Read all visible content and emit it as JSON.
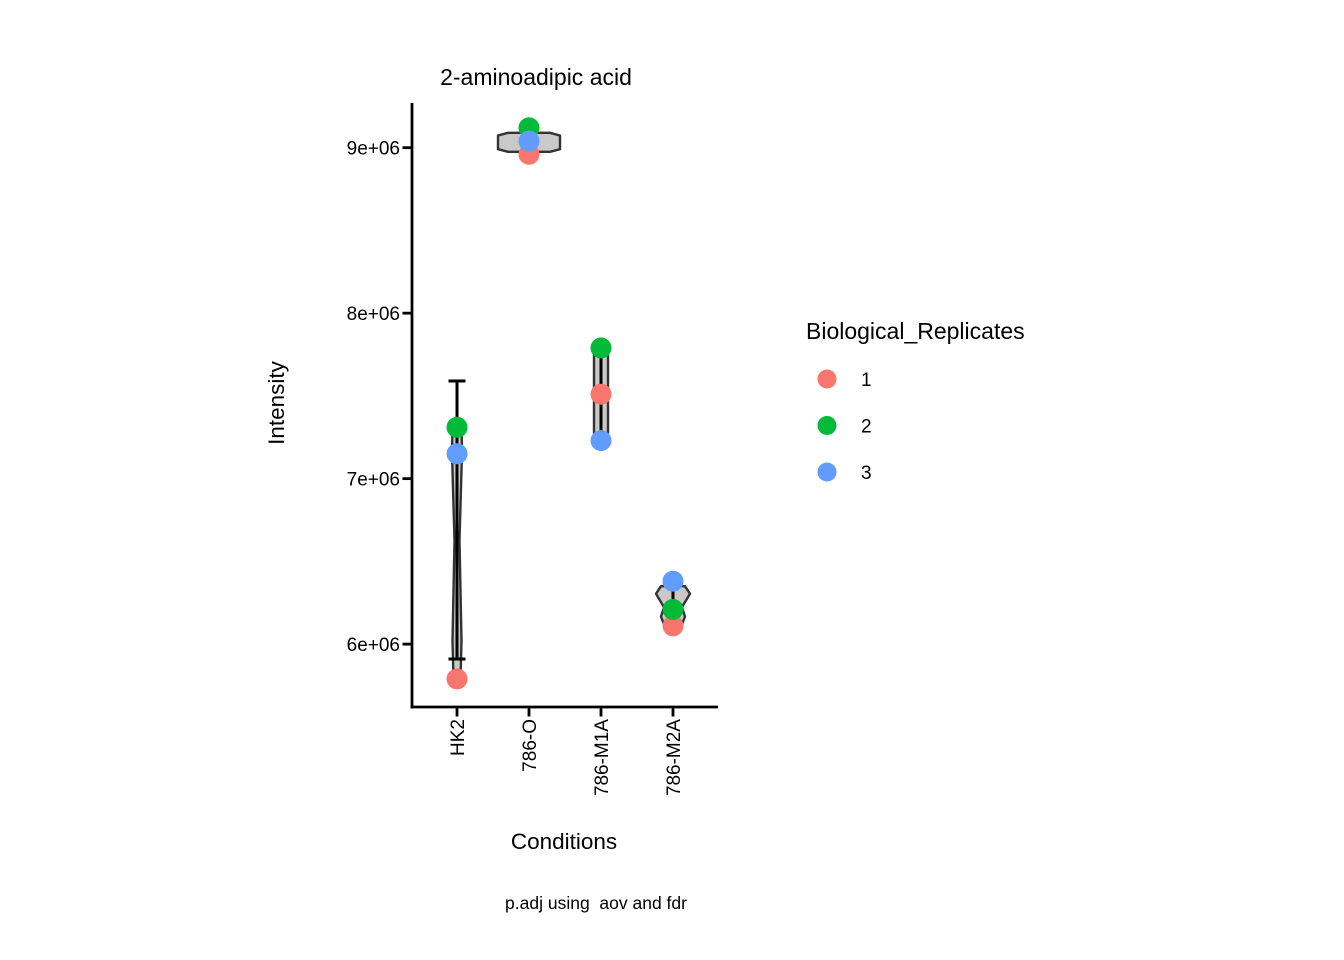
{
  "chart_data": {
    "type": "scatter",
    "subtype": "violin-dotplot",
    "title": "2-aminoadipic acid",
    "xlabel": "Conditions",
    "ylabel": "Intensity",
    "caption": "p.adj using  aov and fdr",
    "categories": [
      "HK2",
      "786-O",
      "786-M1A",
      "786-M2A"
    ],
    "y_ticks": {
      "labels": [
        "6e+06",
        "7e+06",
        "8e+06",
        "9e+06"
      ],
      "values": [
        6000000,
        7000000,
        8000000,
        9000000
      ]
    },
    "ylim": [
      5620000,
      9270000
    ],
    "grid": false,
    "legend": {
      "title": "Biological_Replicates",
      "position": "right",
      "entries": [
        {
          "label": "1",
          "color": "#F8766D"
        },
        {
          "label": "2",
          "color": "#00BA38"
        },
        {
          "label": "3",
          "color": "#619CFF"
        }
      ]
    },
    "series": [
      {
        "name": "1",
        "color": "#F8766D",
        "values": [
          5790000,
          8960000,
          7510000,
          6110000
        ]
      },
      {
        "name": "2",
        "color": "#00BA38",
        "values": [
          7310000,
          9120000,
          7790000,
          6210000
        ]
      },
      {
        "name": "3",
        "color": "#619CFF",
        "values": [
          7150000,
          9040000,
          7230000,
          6380000
        ]
      }
    ],
    "error_bars": [
      {
        "category": "HK2",
        "low": 5910000,
        "high": 7590000
      },
      {
        "category": "786-O",
        "low": 8960000,
        "high": 9120000
      },
      {
        "category": "786-M1A",
        "low": 7230000,
        "high": 7790000
      },
      {
        "category": "786-M2A",
        "low": 6100000,
        "high": 6370000
      }
    ],
    "violins": [
      {
        "category": "HK2",
        "min": 5790000,
        "max": 7310000,
        "profile": [
          [
            0,
            4.5
          ],
          [
            0.1,
            5
          ],
          [
            0.45,
            2.5
          ],
          [
            0.85,
            4.5
          ],
          [
            1,
            3.5
          ]
        ]
      },
      {
        "category": "786-O",
        "min": 8975000,
        "max": 9090000,
        "profile": [
          [
            0,
            21
          ],
          [
            0.14,
            31
          ],
          [
            0.86,
            31
          ],
          [
            1,
            21
          ]
        ]
      },
      {
        "category": "786-M1A",
        "min": 7230000,
        "max": 7790000,
        "profile": [
          [
            0,
            5
          ],
          [
            0.08,
            7
          ],
          [
            0.92,
            7
          ],
          [
            1,
            5
          ]
        ]
      },
      {
        "category": "786-M2A",
        "min": 6120000,
        "max": 6350000,
        "profile": [
          [
            0,
            12
          ],
          [
            0.2,
            17
          ],
          [
            0.55,
            9
          ],
          [
            0.8,
            12
          ],
          [
            1,
            9
          ]
        ]
      }
    ],
    "styles": {
      "violin_fill": "#C9C9C9",
      "violin_stroke": "#333333",
      "errorbar_color": "#000000",
      "axis_color": "#000000",
      "background": "#FFFFFF"
    }
  }
}
